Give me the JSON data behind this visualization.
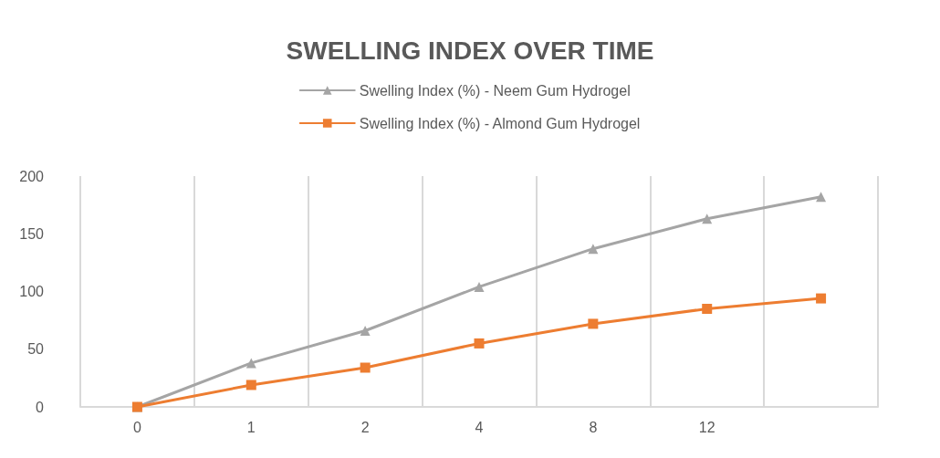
{
  "chart_data": {
    "type": "line",
    "title": "SWELLING INDEX OVER TIME",
    "categories": [
      "0",
      "1",
      "2",
      "4",
      "8",
      "12",
      null
    ],
    "series": [
      {
        "name": "Swelling Index (%) - Neem Gum Hydrogel",
        "color": "#a5a5a5",
        "marker": "triangle",
        "values": [
          0,
          38,
          66,
          104,
          137,
          163,
          182
        ]
      },
      {
        "name": "Swelling Index (%) - Almond Gum Hydrogel",
        "color": "#ed7d31",
        "marker": "square",
        "values": [
          0,
          19,
          34,
          55,
          72,
          85,
          94
        ]
      }
    ],
    "ylim": [
      0,
      200
    ],
    "yticks": [
      0,
      50,
      100,
      150,
      200
    ],
    "grid": "x",
    "legend": "top",
    "line_style": "solid"
  }
}
